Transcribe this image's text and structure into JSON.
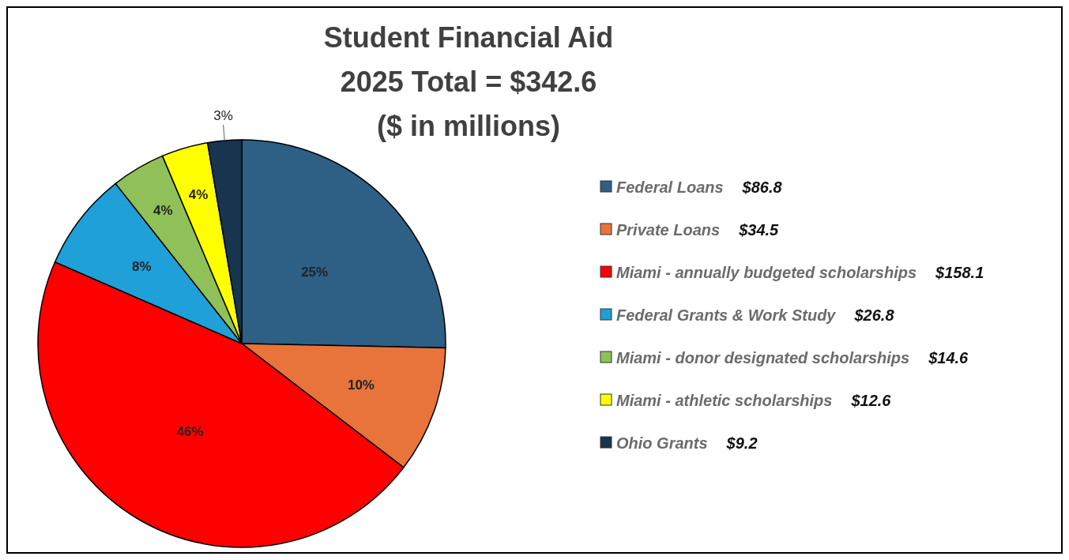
{
  "chart_data": {
    "type": "pie",
    "title": "Student Financial Aid\n2025 Total = $342.6\n($ in millions)",
    "categories": [
      "Federal Loans",
      "Private Loans",
      "Miami - annually budgeted scholarships",
      "Federal Grants & Work Study",
      "Miami - donor designated scholarships",
      "Miami - athletic scholarships",
      "Ohio Grants"
    ],
    "values": [
      86.8,
      34.5,
      158.1,
      26.8,
      14.6,
      12.6,
      9.2
    ],
    "colors": [
      "#2e5f85",
      "#e8743b",
      "#ff0000",
      "#1fa0d8",
      "#8fc158",
      "#ffff00",
      "#17354f"
    ],
    "annotations": [
      "25%",
      "10%",
      "46%",
      "8%",
      "4%",
      "4%",
      "3%"
    ],
    "value_labels": [
      "$86.8",
      "$34.5",
      "$158.1",
      "$26.8",
      "$14.6",
      "$12.6",
      "$9.2"
    ],
    "legend": "right"
  }
}
